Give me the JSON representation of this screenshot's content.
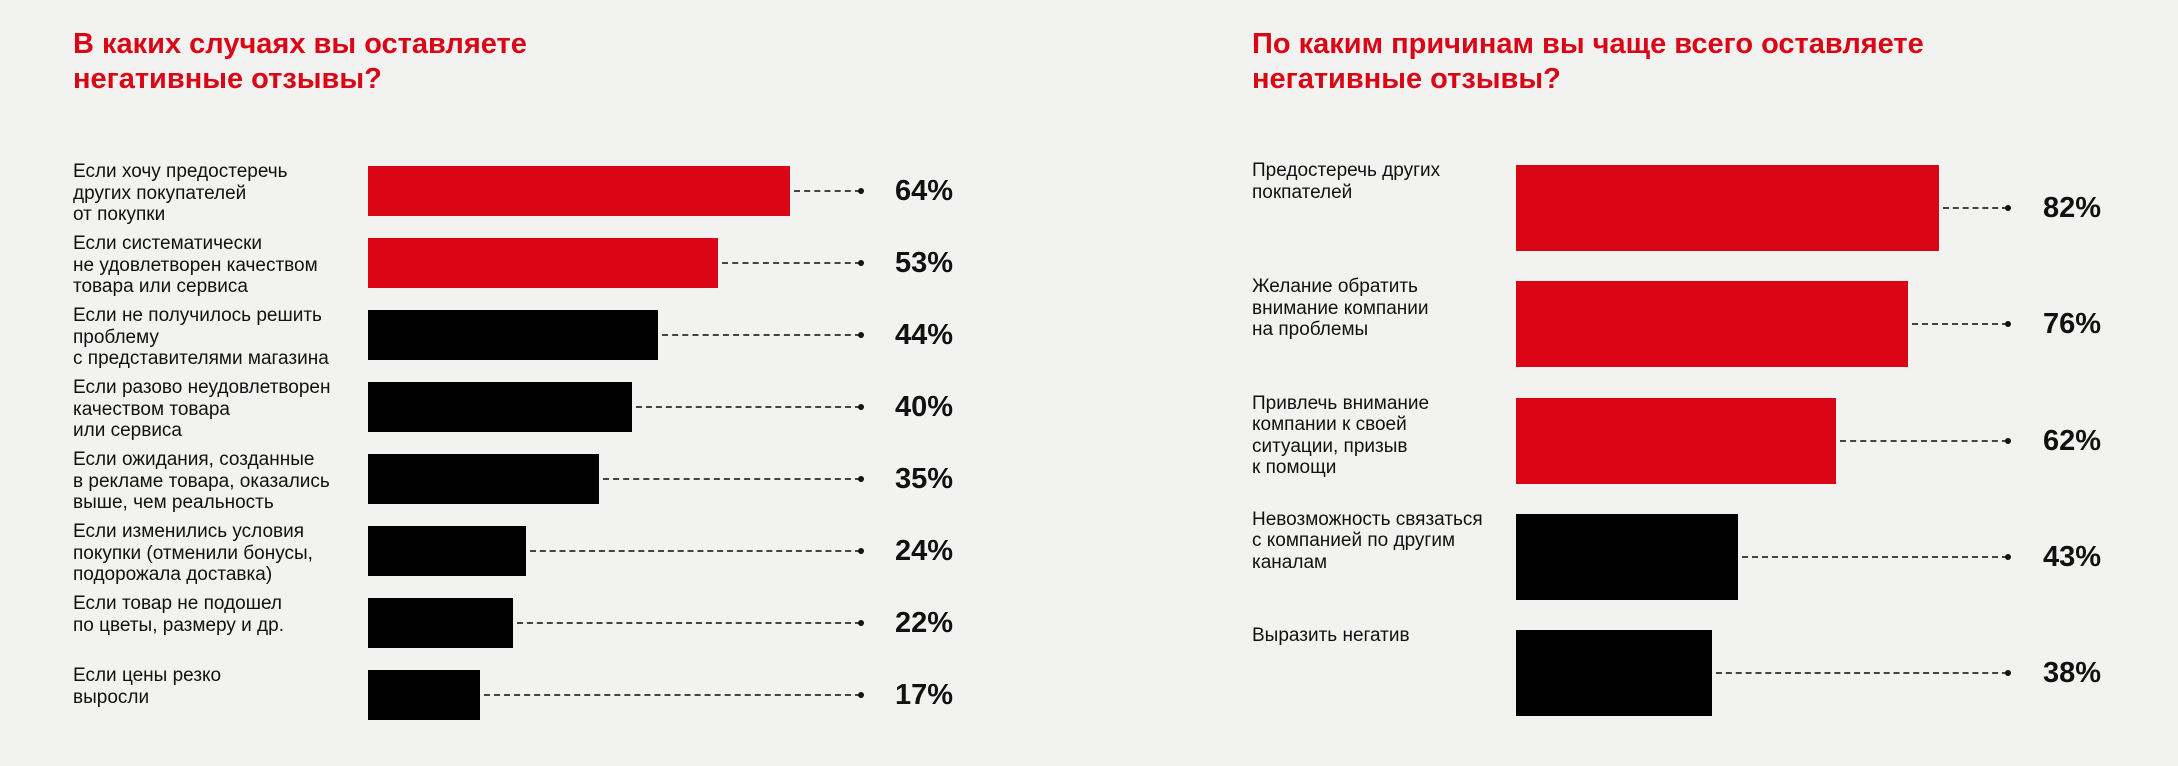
{
  "colors": {
    "accent": "#da0616",
    "dark": "#000000",
    "background": "#f2f2f1"
  },
  "chart_data": [
    {
      "type": "bar",
      "orientation": "horizontal",
      "title": "В каких случаях вы оставляете\nнегативные отзывы?",
      "unit": "%",
      "xlim": [
        0,
        100
      ],
      "categories": [
        "Если хочу предостеречь\nдругих покупателей\nот покупки",
        "Если систематически\nне удовлетворен качеством\nтовара или сервиса",
        "Если не получилось решить\nпроблему\nс представителями магазина",
        "Если разово неудовлетворен\nкачеством товара\nили сервиса",
        "Если ожидания, созданные\nв рекламе товара, оказались\nвыше, чем реальность",
        "Если изменились условия\nпокупки (отменили бонусы,\nподорожала доставка)",
        "Если товар не подошел\nпо цветы, размеру и др.",
        "Если цены резко\nвыросли"
      ],
      "values": [
        64,
        53,
        44,
        40,
        35,
        24,
        22,
        17
      ],
      "value_labels": [
        "64%",
        "53%",
        "44%",
        "40%",
        "35%",
        "24%",
        "22%",
        "17%"
      ],
      "highlighted": [
        true,
        true,
        false,
        false,
        false,
        false,
        false,
        false
      ],
      "grid": false,
      "legend": false
    },
    {
      "type": "bar",
      "orientation": "horizontal",
      "title": "По каким причинам вы чаще всего оставляете\nнегативные отзывы?",
      "unit": "%",
      "xlim": [
        0,
        100
      ],
      "categories": [
        "Предостеречь других\nпокпателей",
        "Желание обратить\nвнимание компании\nна проблемы",
        "Привлечь внимание\nкомпании к своей\nситуации, призыв\nк помощи",
        "Невозможность связаться\nс компанией по другим\nканалам",
        "Выразить негатив"
      ],
      "values": [
        82,
        76,
        62,
        43,
        38
      ],
      "value_labels": [
        "82%",
        "76%",
        "62%",
        "43%",
        "38%"
      ],
      "highlighted": [
        true,
        true,
        true,
        false,
        false
      ],
      "grid": false,
      "legend": false
    }
  ]
}
